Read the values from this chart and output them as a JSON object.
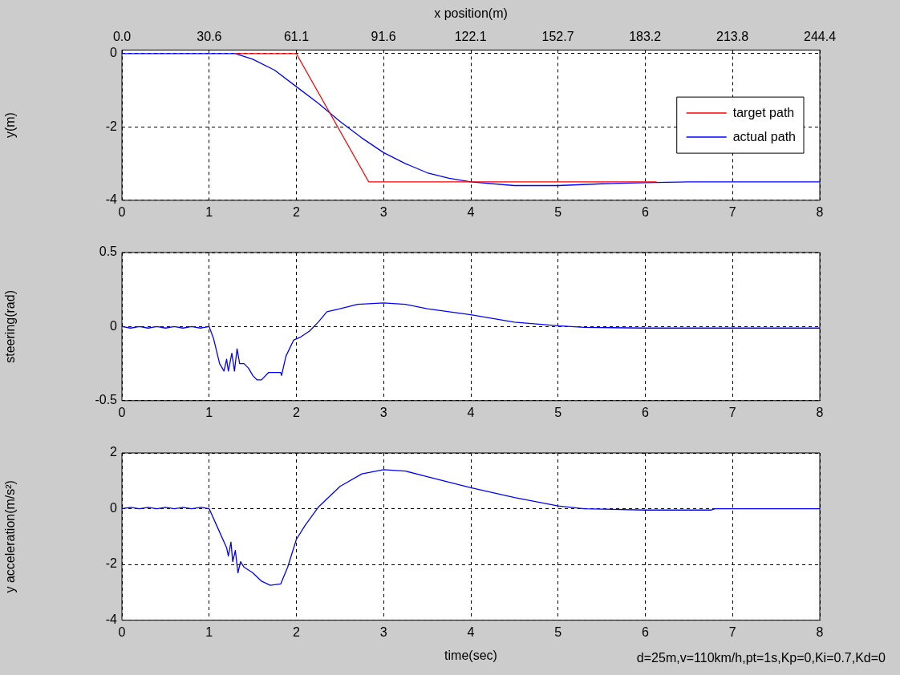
{
  "chart_data": [
    {
      "type": "line",
      "x2label": "x position(m)",
      "ylabel": "y(m)",
      "xlim": [
        0,
        8
      ],
      "xticks": [
        0,
        1,
        2,
        3,
        4,
        5,
        6,
        7,
        8
      ],
      "ylim": [
        -4,
        0.1
      ],
      "yticks": [
        -4,
        -2,
        0
      ],
      "x2lim": [
        0,
        244.4
      ],
      "x2ticks": [
        {
          "value": 0,
          "label": "0.0"
        },
        30.6,
        61.1,
        91.6,
        122.1,
        152.7,
        183.2,
        213.8,
        244.4
      ],
      "grid": true,
      "legend": "right",
      "marker": "none",
      "line_style": "solid",
      "series": [
        {
          "name": "target path",
          "color": "#ff0000",
          "x": [
            1.3,
            2,
            2.83,
            6.13
          ],
          "values": [
            0,
            0,
            -3.5,
            -3.5
          ]
        },
        {
          "name": "actual path",
          "color": "#0000ff",
          "x": [
            0,
            1.3,
            1.5,
            1.75,
            2.0,
            2.25,
            2.5,
            2.75,
            3.0,
            3.25,
            3.5,
            3.75,
            4.0,
            4.5,
            5.0,
            5.5,
            6.0,
            6.5,
            8
          ],
          "values": [
            0,
            0,
            -0.15,
            -0.45,
            -0.9,
            -1.35,
            -1.85,
            -2.3,
            -2.7,
            -3.0,
            -3.25,
            -3.4,
            -3.5,
            -3.6,
            -3.6,
            -3.55,
            -3.52,
            -3.5,
            -3.5
          ]
        }
      ]
    },
    {
      "type": "line",
      "ylabel": "steering(rad)",
      "xlim": [
        0,
        8
      ],
      "xticks": [
        0,
        1,
        2,
        3,
        4,
        5,
        6,
        7,
        8
      ],
      "ylim": [
        -0.5,
        0.5
      ],
      "yticks": [
        -0.5,
        0,
        0.5
      ],
      "grid": true,
      "marker": "none",
      "line_style": "solid",
      "series": [
        {
          "color": "#0000ff",
          "x": [
            0,
            0.1,
            0.2,
            0.3,
            0.4,
            0.5,
            0.6,
            0.7,
            0.8,
            0.9,
            1.0,
            1.05,
            1.12,
            1.17,
            1.2,
            1.22,
            1.26,
            1.29,
            1.32,
            1.35,
            1.4,
            1.45,
            1.5,
            1.55,
            1.6,
            1.68,
            1.82,
            1.83,
            1.88,
            1.97,
            2.05,
            2.15,
            2.25,
            2.35,
            2.5,
            2.7,
            3.0,
            3.25,
            3.5,
            4.0,
            4.5,
            5.0,
            5.3,
            6,
            8
          ],
          "values": [
            0,
            -0.01,
            0,
            -0.01,
            0,
            -0.01,
            0,
            -0.01,
            0,
            -0.01,
            0,
            -0.08,
            -0.25,
            -0.3,
            -0.22,
            -0.3,
            -0.18,
            -0.3,
            -0.15,
            -0.25,
            -0.25,
            -0.28,
            -0.33,
            -0.36,
            -0.36,
            -0.31,
            -0.31,
            -0.33,
            -0.2,
            -0.09,
            -0.07,
            -0.03,
            0.03,
            0.1,
            0.12,
            0.15,
            0.16,
            0.15,
            0.12,
            0.08,
            0.03,
            0.005,
            -0.005,
            -0.01,
            -0.01
          ]
        }
      ]
    },
    {
      "type": "line",
      "ylabel": "y acceleration(m/s²)",
      "xlabel": "time(sec)",
      "annotations": [
        "d=25m,v=110km/h,pt=1s,Kp=0,Ki=0.7,Kd=0"
      ],
      "xlim": [
        0,
        8
      ],
      "xticks": [
        0,
        1,
        2,
        3,
        4,
        5,
        6,
        7,
        8
      ],
      "ylim": [
        -4,
        2
      ],
      "yticks": [
        -4,
        -2,
        0,
        2
      ],
      "grid": true,
      "marker": "none",
      "line_style": "solid",
      "series": [
        {
          "color": "#0000ff",
          "x": [
            0,
            0.1,
            0.2,
            0.3,
            0.4,
            0.5,
            0.6,
            0.7,
            0.8,
            0.9,
            1.0,
            1.1,
            1.2,
            1.22,
            1.25,
            1.27,
            1.3,
            1.33,
            1.36,
            1.4,
            1.5,
            1.6,
            1.7,
            1.82,
            1.9,
            2.0,
            2.1,
            2.25,
            2.5,
            2.75,
            3.0,
            3.25,
            3.5,
            4.0,
            4.5,
            5.0,
            5.3,
            6,
            6.75,
            6.8,
            8
          ],
          "values": [
            0,
            0.05,
            0,
            0.05,
            0,
            0.05,
            0,
            0.05,
            0,
            0.05,
            0,
            -0.7,
            -1.4,
            -1.7,
            -1.2,
            -1.9,
            -1.5,
            -2.3,
            -1.9,
            -2.1,
            -2.3,
            -2.6,
            -2.75,
            -2.7,
            -2.1,
            -1.1,
            -0.6,
            0.05,
            0.8,
            1.25,
            1.4,
            1.35,
            1.15,
            0.75,
            0.4,
            0.1,
            0,
            -0.05,
            -0.05,
            0,
            0
          ]
        }
      ]
    }
  ]
}
